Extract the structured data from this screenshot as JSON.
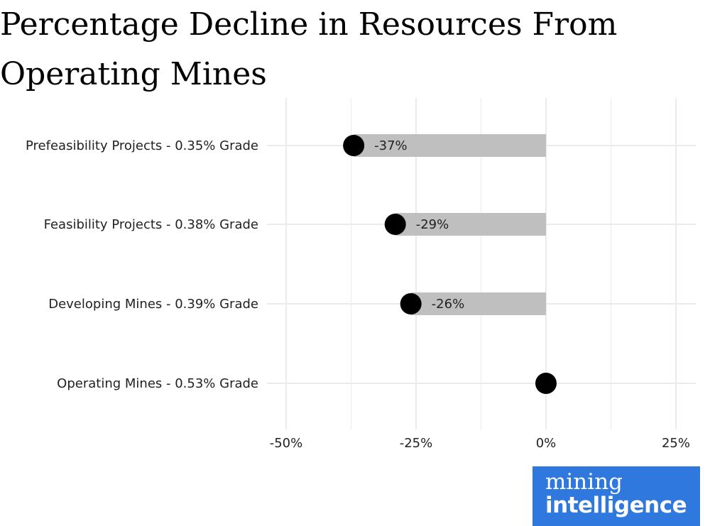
{
  "chart_data": {
    "type": "bar",
    "title_lines": [
      "Percentage Decline in Resources From",
      "Operating Mines"
    ],
    "categories": [
      "Prefeasibility Projects - 0.35% Grade",
      "Feasibility Projects - 0.38% Grade",
      "Developing Mines - 0.39% Grade",
      "Operating Mines - 0.53% Grade"
    ],
    "values": [
      -37,
      -29,
      -26,
      0
    ],
    "data_labels": [
      "-37%",
      "-29%",
      "-26%",
      ""
    ],
    "xlim": [
      -50,
      25
    ],
    "xticks": [
      -50,
      -25,
      0,
      25
    ],
    "xtick_labels": [
      "-50%",
      "-25%",
      "0%",
      "25%"
    ],
    "grid": true,
    "colors": {
      "bar": "#bfbfbf",
      "point": "#000000",
      "grid": "#ebebeb"
    }
  },
  "logo": {
    "line1": "mining",
    "line2": "intelligence",
    "color": "#2f78de"
  }
}
